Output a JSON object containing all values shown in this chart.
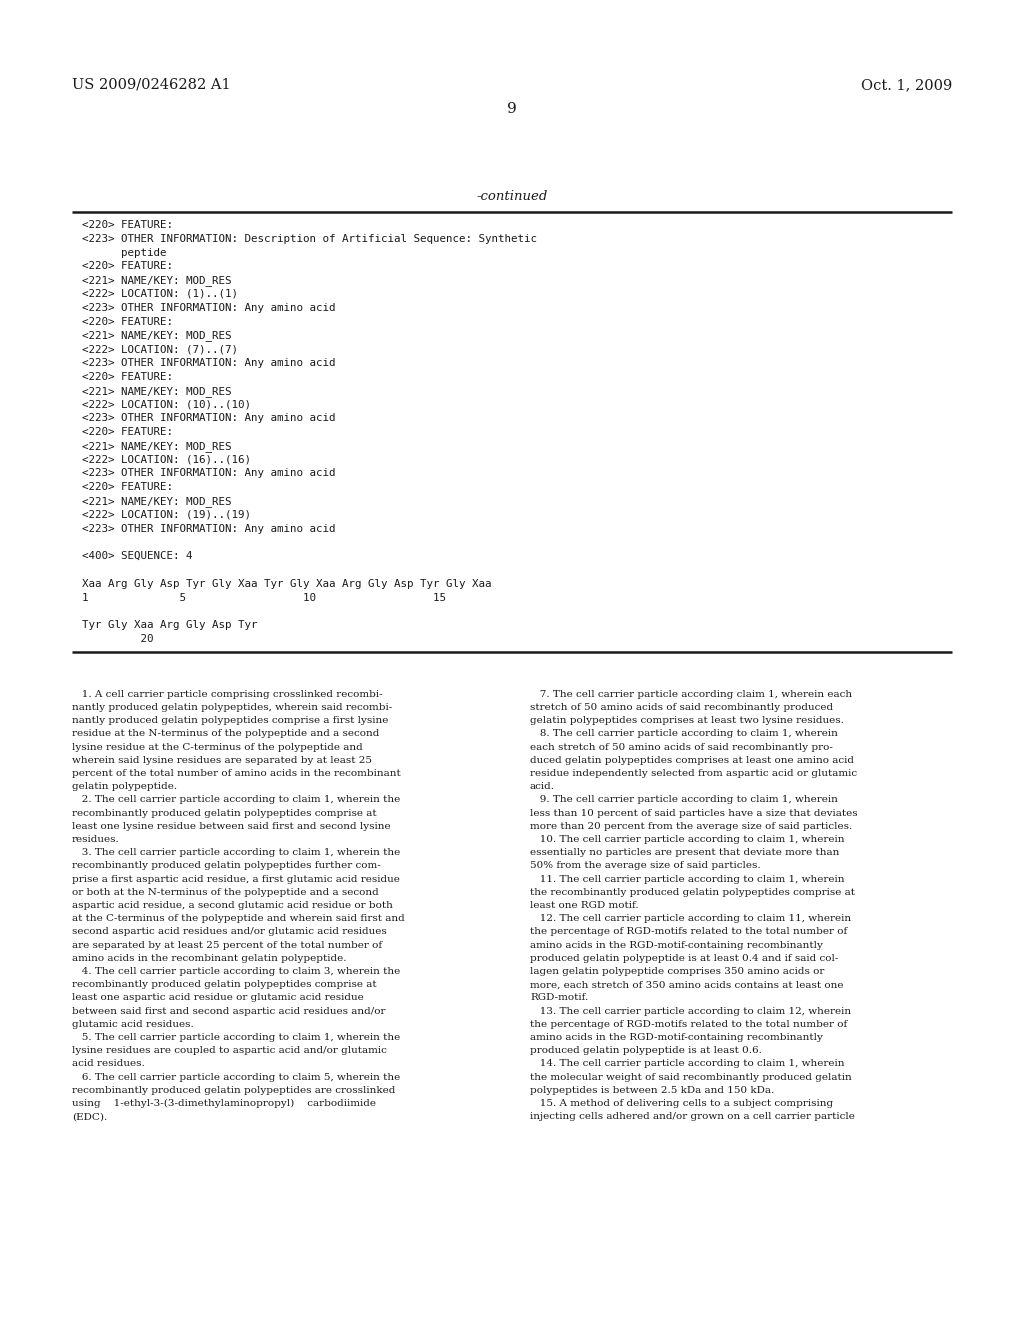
{
  "bg_color": "#ffffff",
  "header_left": "US 2009/0246282 A1",
  "header_right": "Oct. 1, 2009",
  "page_number": "9",
  "continued_label": "-continued",
  "top_box_lines": [
    "<220> FEATURE:",
    "<223> OTHER INFORMATION: Description of Artificial Sequence: Synthetic",
    "      peptide",
    "<220> FEATURE:",
    "<221> NAME/KEY: MOD_RES",
    "<222> LOCATION: (1)..(1)",
    "<223> OTHER INFORMATION: Any amino acid",
    "<220> FEATURE:",
    "<221> NAME/KEY: MOD_RES",
    "<222> LOCATION: (7)..(7)",
    "<223> OTHER INFORMATION: Any amino acid",
    "<220> FEATURE:",
    "<221> NAME/KEY: MOD_RES",
    "<222> LOCATION: (10)..(10)",
    "<223> OTHER INFORMATION: Any amino acid",
    "<220> FEATURE:",
    "<221> NAME/KEY: MOD_RES",
    "<222> LOCATION: (16)..(16)",
    "<223> OTHER INFORMATION: Any amino acid",
    "<220> FEATURE:",
    "<221> NAME/KEY: MOD_RES",
    "<222> LOCATION: (19)..(19)",
    "<223> OTHER INFORMATION: Any amino acid",
    "",
    "<400> SEQUENCE: 4",
    "",
    "Xaa Arg Gly Asp Tyr Gly Xaa Tyr Gly Xaa Arg Gly Asp Tyr Gly Xaa",
    "1              5                  10                  15",
    "",
    "Tyr Gly Xaa Arg Gly Asp Tyr",
    "         20"
  ],
  "claims_left": [
    "   1. A cell carrier particle comprising crosslinked recombi-",
    "nantly produced gelatin polypeptides, wherein said recombi-",
    "nantly produced gelatin polypeptides comprise a first lysine",
    "residue at the N-terminus of the polypeptide and a second",
    "lysine residue at the C-terminus of the polypeptide and",
    "wherein said lysine residues are separated by at least 25",
    "percent of the total number of amino acids in the recombinant",
    "gelatin polypeptide.",
    "   2. The cell carrier particle according to claim 1, wherein the",
    "recombinantly produced gelatin polypeptides comprise at",
    "least one lysine residue between said first and second lysine",
    "residues.",
    "   3. The cell carrier particle according to claim 1, wherein the",
    "recombinantly produced gelatin polypeptides further com-",
    "prise a first aspartic acid residue, a first glutamic acid residue",
    "or both at the N-terminus of the polypeptide and a second",
    "aspartic acid residue, a second glutamic acid residue or both",
    "at the C-terminus of the polypeptide and wherein said first and",
    "second aspartic acid residues and/or glutamic acid residues",
    "are separated by at least 25 percent of the total number of",
    "amino acids in the recombinant gelatin polypeptide.",
    "   4. The cell carrier particle according to claim 3, wherein the",
    "recombinantly produced gelatin polypeptides comprise at",
    "least one aspartic acid residue or glutamic acid residue",
    "between said first and second aspartic acid residues and/or",
    "glutamic acid residues.",
    "   5. The cell carrier particle according to claim 1, wherein the",
    "lysine residues are coupled to aspartic acid and/or glutamic",
    "acid residues.",
    "   6. The cell carrier particle according to claim 5, wherein the",
    "recombinantly produced gelatin polypeptides are crosslinked",
    "using    1-ethyl-3-(3-dimethylaminopropyl)    carbodiimide",
    "(EDC)."
  ],
  "claims_right": [
    "   7. The cell carrier particle according claim 1, wherein each",
    "stretch of 50 amino acids of said recombinantly produced",
    "gelatin polypeptides comprises at least two lysine residues.",
    "   8. The cell carrier particle according to claim 1, wherein",
    "each stretch of 50 amino acids of said recombinantly pro-",
    "duced gelatin polypeptides comprises at least one amino acid",
    "residue independently selected from aspartic acid or glutamic",
    "acid.",
    "   9. The cell carrier particle according to claim 1, wherein",
    "less than 10 percent of said particles have a size that deviates",
    "more than 20 percent from the average size of said particles.",
    "   10. The cell carrier particle according to claim 1, wherein",
    "essentially no particles are present that deviate more than",
    "50% from the average size of said particles.",
    "   11. The cell carrier particle according to claim 1, wherein",
    "the recombinantly produced gelatin polypeptides comprise at",
    "least one RGD motif.",
    "   12. The cell carrier particle according to claim 11, wherein",
    "the percentage of RGD-motifs related to the total number of",
    "amino acids in the RGD-motif-containing recombinantly",
    "produced gelatin polypeptide is at least 0.4 and if said col-",
    "lagen gelatin polypeptide comprises 350 amino acids or",
    "more, each stretch of 350 amino acids contains at least one",
    "RGD-motif.",
    "   13. The cell carrier particle according to claim 12, wherein",
    "the percentage of RGD-motifs related to the total number of",
    "amino acids in the RGD-motif-containing recombinantly",
    "produced gelatin polypeptide is at least 0.6.",
    "   14. The cell carrier particle according to claim 1, wherein",
    "the molecular weight of said recombinantly produced gelatin",
    "polypeptides is between 2.5 kDa and 150 kDa.",
    "   15. A method of delivering cells to a subject comprising",
    "injecting cells adhered and/or grown on a cell carrier particle"
  ]
}
